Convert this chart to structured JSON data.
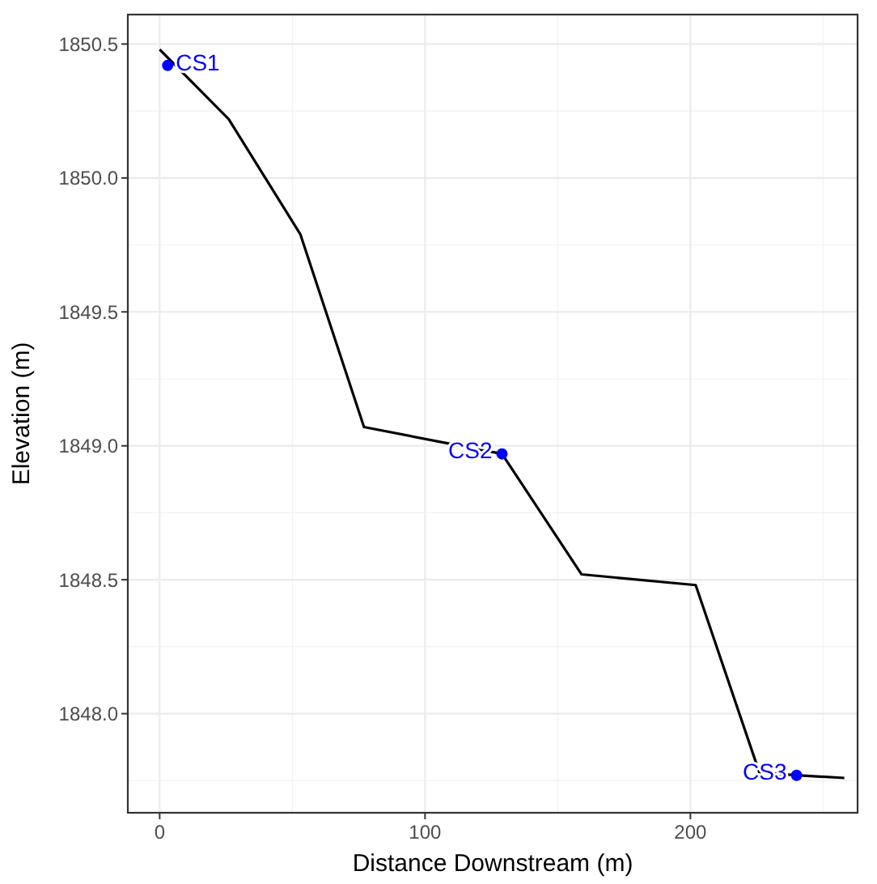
{
  "chart_data": {
    "type": "line",
    "xlabel": "Distance Downstream (m)",
    "ylabel": "Elevation (m)",
    "xlim": [
      -12,
      263
    ],
    "ylim": [
      1847.63,
      1850.61
    ],
    "xticks": [
      0,
      100,
      200
    ],
    "yticks": [
      {
        "value": 1848,
        "label": "1848.0"
      },
      1848.5,
      {
        "value": 1849,
        "label": "1849.0"
      },
      1849.5,
      {
        "value": 1850,
        "label": "1850.0"
      },
      1850.5
    ],
    "grid": true,
    "series": [
      {
        "color": "#000000",
        "x": [
          0,
          26,
          53,
          77,
          129,
          159,
          202,
          226,
          240,
          258
        ],
        "values": [
          1850.48,
          1850.22,
          1849.79,
          1849.07,
          1848.97,
          1848.52,
          1848.48,
          1847.78,
          1847.77,
          1847.76
        ]
      },
      {
        "type": "scatter",
        "color": "#0000ff",
        "marker": "circle",
        "x": [
          3,
          129,
          240
        ],
        "values": [
          1850.42,
          1848.97,
          1847.77
        ]
      }
    ],
    "annotations": [
      {
        "text": "CS1",
        "x": 3,
        "y": 1850.42
      },
      {
        "text": "CS2",
        "x": 129,
        "y": 1848.97
      },
      {
        "text": "CS3",
        "x": 240,
        "y": 1847.77
      }
    ]
  }
}
